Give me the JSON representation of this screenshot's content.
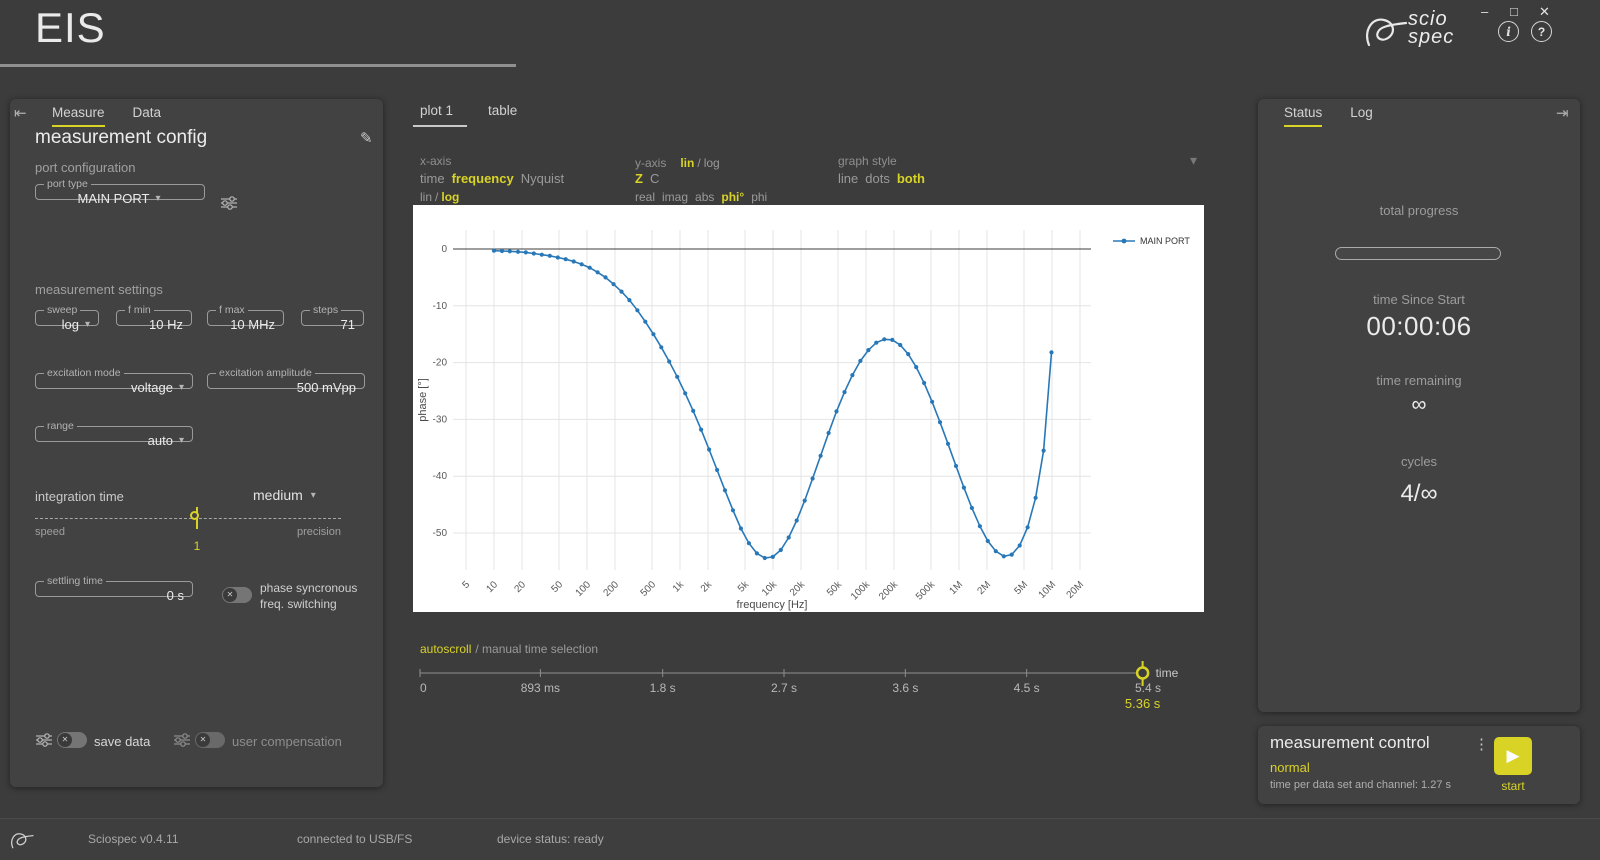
{
  "titlebar": {
    "app_title": "EIS",
    "brand_line1": "scio",
    "brand_line2": "spec"
  },
  "icons": {
    "minimize": "–",
    "maximize": "□",
    "close": "✕",
    "info": "i",
    "help": "?",
    "pencil": "✎",
    "kebab": "⋮",
    "collapse_left": "⇤",
    "collapse_right": "⇥",
    "dropdown": "▾",
    "toggle_x": "✕",
    "play": "▶"
  },
  "colors": {
    "accent": "#d9d326",
    "series_blue": "#2878b8",
    "panel": "#424242",
    "background": "#3c3c3c"
  },
  "left_panel": {
    "tabs": [
      {
        "label": "Measure",
        "active": true
      },
      {
        "label": "Data",
        "active": false
      }
    ],
    "heading": "measurement config",
    "port_configuration": {
      "title": "port configuration",
      "port_type": {
        "label": "port type",
        "value": "MAIN PORT"
      }
    },
    "measurement_settings": {
      "title": "measurement settings",
      "sweep": {
        "label": "sweep",
        "value": "log"
      },
      "f_min": {
        "label": "f min",
        "value": "10 Hz"
      },
      "f_max": {
        "label": "f max",
        "value": "10 MHz"
      },
      "steps": {
        "label": "steps",
        "value": "71"
      },
      "excitation_mode": {
        "label": "excitation mode",
        "value": "voltage"
      },
      "excitation_amplitude": {
        "label": "excitation amplitude",
        "value": "500 mVpp"
      },
      "range": {
        "label": "range",
        "value": "auto"
      },
      "integration_time": {
        "label": "integration time",
        "value": "medium"
      },
      "slider": {
        "left": "speed",
        "right": "precision",
        "value": "1"
      },
      "settling_time": {
        "label": "settling time",
        "value": "0 s"
      },
      "phase_sync": {
        "line1": "phase syncronous",
        "line2": "freq. switching"
      }
    },
    "footer": {
      "save_data": "save data",
      "user_compensation": "user compensation"
    }
  },
  "plot_panel": {
    "tabs": [
      {
        "label": "plot 1",
        "active": true
      },
      {
        "label": "table",
        "active": false
      }
    ],
    "x_axis": {
      "label": "x-axis",
      "time": "time",
      "frequency": "frequency",
      "nyquist": "Nyquist",
      "lin": "lin",
      "sep": "/",
      "log": "log"
    },
    "y_axis": {
      "label": "y-axis",
      "lin": "lin",
      "sep": "/",
      "log": "log",
      "z": "Z",
      "c": "C",
      "real": "real",
      "imag": "imag",
      "abs": "abs",
      "phideg": "phi°",
      "phi": "phi"
    },
    "graph_style": {
      "label": "graph style",
      "line": "line",
      "dots": "dots",
      "both": "both"
    },
    "autoscroll": {
      "active": "autoscroll",
      "inactive": "/ manual time selection"
    }
  },
  "timeline": {
    "max": 5.4,
    "ticks": [
      {
        "v": 0,
        "label": "0"
      },
      {
        "v": 0.893,
        "label": "893 ms"
      },
      {
        "v": 1.8,
        "label": "1.8 s"
      },
      {
        "v": 2.7,
        "label": "2.7 s"
      },
      {
        "v": 3.6,
        "label": "3.6 s"
      },
      {
        "v": 4.5,
        "label": "4.5 s"
      },
      {
        "v": 5.4,
        "label": "5.4 s"
      }
    ],
    "handle_value": 5.36,
    "handle_label": "time",
    "handle_readout": "5.36 s"
  },
  "right_panel": {
    "tabs": [
      {
        "label": "Status",
        "active": true
      },
      {
        "label": "Log",
        "active": false
      }
    ],
    "total_progress_label": "total progress",
    "time_since_start_label": "time Since Start",
    "time_since_start_value": "00:00:06",
    "time_remaining_label": "time remaining",
    "time_remaining_value": "∞",
    "cycles_label": "cycles",
    "cycles_value": "4/∞"
  },
  "measurement_control": {
    "title": "measurement control",
    "mode": "normal",
    "info": "time per data set and channel: 1.27 s",
    "start_label": "start"
  },
  "statusbar": {
    "version": "Sciospec v0.4.11",
    "connection": "connected to USB/FS",
    "device_status": "device status: ready"
  },
  "chart_data": {
    "type": "line",
    "title": "",
    "xlabel": "frequency [Hz]",
    "ylabel": "phase [°]",
    "x_scale": "log",
    "grid": true,
    "legend": [
      "MAIN PORT"
    ],
    "legend_position": "top-right",
    "xlim": [
      5,
      20000000
    ],
    "ylim": [
      3,
      -57
    ],
    "yticks": [
      0,
      -10,
      -20,
      -30,
      -40,
      -50
    ],
    "xticks": [
      {
        "v": 5,
        "label": "5"
      },
      {
        "v": 10,
        "label": "10"
      },
      {
        "v": 20,
        "label": "20"
      },
      {
        "v": 50,
        "label": "50"
      },
      {
        "v": 100,
        "label": "100"
      },
      {
        "v": 200,
        "label": "200"
      },
      {
        "v": 500,
        "label": "500"
      },
      {
        "v": 1000,
        "label": "1k"
      },
      {
        "v": 2000,
        "label": "2k"
      },
      {
        "v": 5000,
        "label": "5k"
      },
      {
        "v": 10000,
        "label": "10k"
      },
      {
        "v": 20000,
        "label": "20k"
      },
      {
        "v": 50000,
        "label": "50k"
      },
      {
        "v": 100000,
        "label": "100k"
      },
      {
        "v": 200000,
        "label": "200k"
      },
      {
        "v": 500000,
        "label": "500k"
      },
      {
        "v": 1000000,
        "label": "1M"
      },
      {
        "v": 2000000,
        "label": "2M"
      },
      {
        "v": 5000000,
        "label": "5M"
      },
      {
        "v": 10000000,
        "label": "10M"
      },
      {
        "v": 20000000,
        "label": "20M"
      }
    ],
    "series": [
      {
        "name": "MAIN PORT",
        "color": "#2878b8",
        "points": [
          [
            10,
            -0.3
          ],
          [
            12.2,
            -0.35
          ],
          [
            14.8,
            -0.4
          ],
          [
            18.1,
            -0.5
          ],
          [
            22,
            -0.6
          ],
          [
            26.8,
            -0.8
          ],
          [
            32.7,
            -1
          ],
          [
            39.8,
            -1.2
          ],
          [
            48.5,
            -1.5
          ],
          [
            59,
            -1.8
          ],
          [
            71.9,
            -2.2
          ],
          [
            87.6,
            -2.7
          ],
          [
            107,
            -3.3
          ],
          [
            130,
            -4.1
          ],
          [
            158,
            -5
          ],
          [
            193,
            -6.2
          ],
          [
            235,
            -7.5
          ],
          [
            286,
            -9
          ],
          [
            348,
            -10.8
          ],
          [
            424,
            -12.8
          ],
          [
            517,
            -15
          ],
          [
            629,
            -17.3
          ],
          [
            766,
            -19.8
          ],
          [
            933,
            -22.5
          ],
          [
            1137,
            -25.4
          ],
          [
            1385,
            -28.5
          ],
          [
            1687,
            -31.8
          ],
          [
            2055,
            -35.3
          ],
          [
            2503,
            -38.9
          ],
          [
            3048,
            -42.5
          ],
          [
            3713,
            -46
          ],
          [
            4522,
            -49.2
          ],
          [
            5508,
            -51.8
          ],
          [
            6709,
            -53.6
          ],
          [
            8171,
            -54.4
          ],
          [
            9953,
            -54.2
          ],
          [
            12123,
            -53
          ],
          [
            14765,
            -50.8
          ],
          [
            17983,
            -47.8
          ],
          [
            21903,
            -44.3
          ],
          [
            26677,
            -40.4
          ],
          [
            32491,
            -36.4
          ],
          [
            39573,
            -32.4
          ],
          [
            48198,
            -28.6
          ],
          [
            58703,
            -25.2
          ],
          [
            71497,
            -22.2
          ],
          [
            87080,
            -19.7
          ],
          [
            106060,
            -17.8
          ],
          [
            129180,
            -16.5
          ],
          [
            157340,
            -15.9
          ],
          [
            191630,
            -16
          ],
          [
            233400,
            -16.9
          ],
          [
            284270,
            -18.5
          ],
          [
            346230,
            -20.8
          ],
          [
            421700,
            -23.6
          ],
          [
            513610,
            -26.9
          ],
          [
            625560,
            -30.5
          ],
          [
            761900,
            -34.3
          ],
          [
            927960,
            -38.2
          ],
          [
            1130200,
            -42
          ],
          [
            1376500,
            -45.6
          ],
          [
            1676500,
            -48.8
          ],
          [
            2041900,
            -51.4
          ],
          [
            2487000,
            -53.2
          ],
          [
            3029000,
            -54.1
          ],
          [
            3689200,
            -53.8
          ],
          [
            4493400,
            -52.2
          ],
          [
            5472800,
            -49
          ],
          [
            6665600,
            -43.8
          ],
          [
            8118400,
            -35.5
          ],
          [
            9888000,
            -18.2
          ]
        ]
      }
    ]
  }
}
